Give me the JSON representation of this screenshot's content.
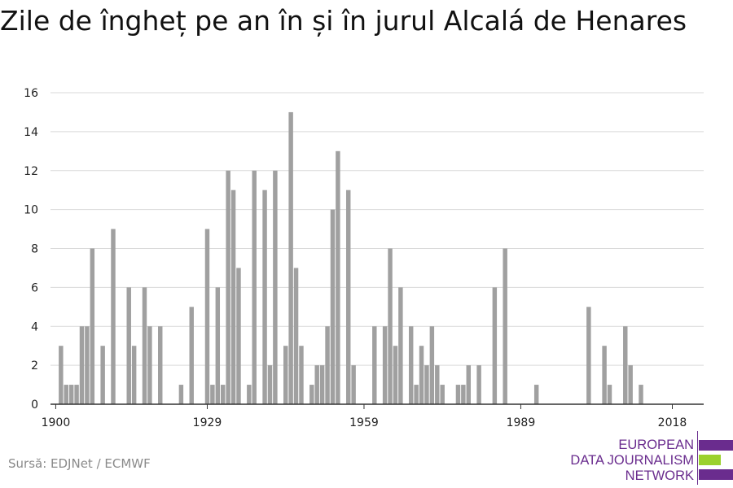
{
  "title": "Zile de îngheț pe an în și în jurul Alcalá de Henares",
  "source": "Sursă: EDJNet / ECMWF",
  "logo": {
    "line1": "EUROPEAN",
    "line2": "DATA JOURNALISM",
    "line3": "NETWORK"
  },
  "colors": {
    "bar": "#a0a0a0",
    "grid": "#d9d9d9",
    "axis": "#333333",
    "logo_purple": "#6a2c8e",
    "logo_green": "#9bd12e"
  },
  "chart_data": {
    "type": "bar",
    "title": "Zile de îngheț pe an în și în jurul Alcalá de Henares",
    "xlabel": "",
    "ylabel": "",
    "xlim": [
      1899,
      2024
    ],
    "ylim": [
      0,
      16
    ],
    "x_ticks": [
      1900,
      1929,
      1959,
      1989,
      2018
    ],
    "y_ticks": [
      0,
      2,
      4,
      6,
      8,
      10,
      12,
      14,
      16
    ],
    "grid": true,
    "x": [
      1900,
      1901,
      1902,
      1903,
      1904,
      1905,
      1906,
      1907,
      1908,
      1909,
      1910,
      1911,
      1912,
      1913,
      1914,
      1915,
      1916,
      1917,
      1918,
      1919,
      1920,
      1921,
      1922,
      1923,
      1924,
      1925,
      1926,
      1927,
      1928,
      1929,
      1930,
      1931,
      1932,
      1933,
      1934,
      1935,
      1936,
      1937,
      1938,
      1939,
      1940,
      1941,
      1942,
      1943,
      1944,
      1945,
      1946,
      1947,
      1948,
      1949,
      1950,
      1951,
      1952,
      1953,
      1954,
      1955,
      1956,
      1957,
      1958,
      1959,
      1960,
      1961,
      1962,
      1963,
      1964,
      1965,
      1966,
      1967,
      1968,
      1969,
      1970,
      1971,
      1972,
      1973,
      1974,
      1975,
      1976,
      1977,
      1978,
      1979,
      1980,
      1981,
      1982,
      1983,
      1984,
      1985,
      1986,
      1987,
      1988,
      1989,
      1990,
      1991,
      1992,
      1993,
      1994,
      1995,
      1996,
      1997,
      1998,
      1999,
      2000,
      2001,
      2002,
      2003,
      2004,
      2005,
      2006,
      2007,
      2008,
      2009,
      2010,
      2011,
      2012,
      2013,
      2014,
      2015,
      2016,
      2017,
      2018,
      2019,
      2020,
      2021,
      2022,
      2023
    ],
    "values": [
      0,
      3,
      1,
      1,
      1,
      4,
      4,
      8,
      0,
      3,
      0,
      9,
      0,
      0,
      6,
      3,
      0,
      6,
      4,
      0,
      4,
      0,
      0,
      0,
      1,
      0,
      5,
      0,
      0,
      9,
      1,
      6,
      1,
      12,
      11,
      7,
      0,
      1,
      12,
      0,
      11,
      2,
      12,
      0,
      3,
      15,
      7,
      3,
      0,
      1,
      2,
      2,
      4,
      10,
      13,
      0,
      11,
      2,
      0,
      0,
      0,
      4,
      0,
      4,
      8,
      3,
      6,
      0,
      4,
      1,
      3,
      2,
      4,
      2,
      1,
      0,
      0,
      1,
      1,
      2,
      0,
      2,
      0,
      0,
      6,
      0,
      8,
      0,
      0,
      0,
      0,
      0,
      1,
      0,
      0,
      0,
      0,
      0,
      0,
      0,
      0,
      0,
      5,
      0,
      0,
      3,
      1,
      0,
      0,
      4,
      2,
      0,
      1,
      0,
      0,
      0,
      0,
      0,
      0,
      0,
      0,
      0,
      0,
      0
    ]
  }
}
